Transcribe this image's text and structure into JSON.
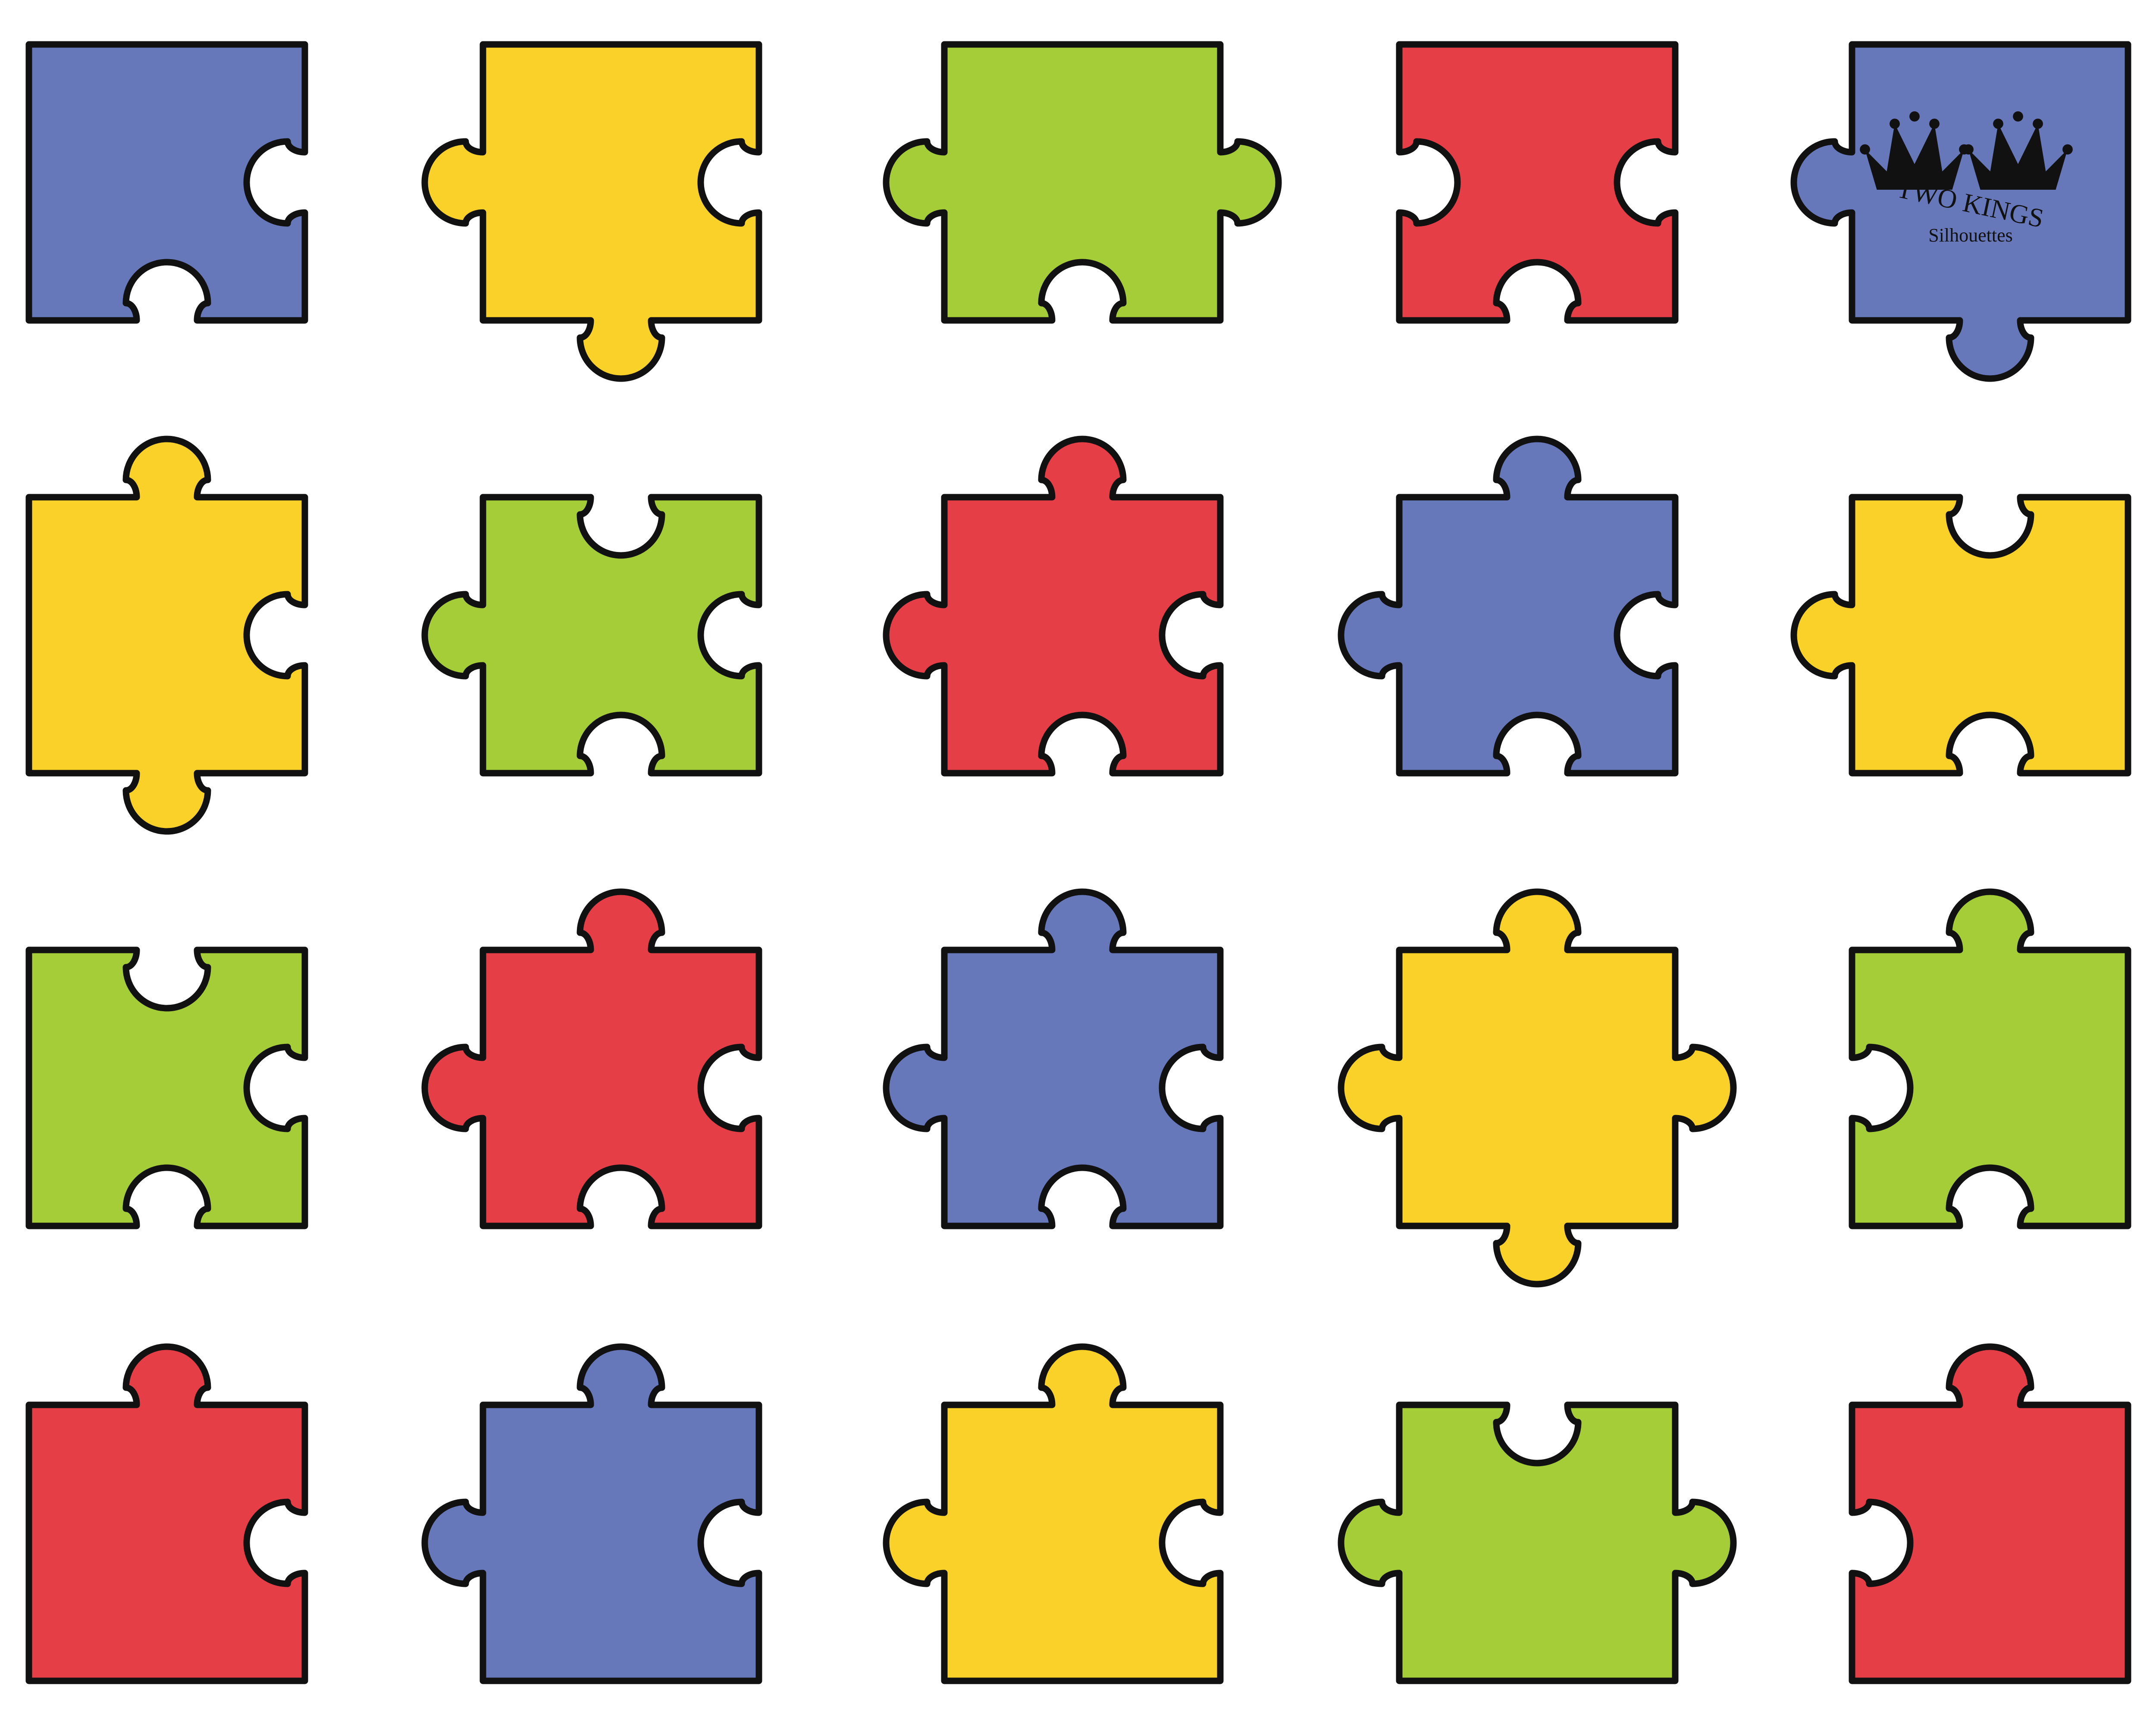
{
  "colors": {
    "blue": "#6678b9",
    "yellow": "#f9d128",
    "green": "#a5cd37",
    "red": "#e63e46",
    "outline": "#111111",
    "background": "#ffffff"
  },
  "watermark": {
    "title": "TWO KINGS",
    "subtitle": "Silhouettes",
    "icon": "crown-icon"
  },
  "pieces": [
    {
      "color": "blue",
      "top": "flat",
      "right": "in",
      "bottom": "in",
      "left": "flat"
    },
    {
      "color": "yellow",
      "top": "flat",
      "right": "in",
      "bottom": "out",
      "left": "out"
    },
    {
      "color": "green",
      "top": "flat",
      "right": "out",
      "bottom": "in",
      "left": "out"
    },
    {
      "color": "red",
      "top": "flat",
      "right": "in",
      "bottom": "in",
      "left": "in"
    },
    {
      "color": "blue",
      "top": "flat",
      "right": "flat",
      "bottom": "out",
      "left": "out"
    },
    {
      "color": "yellow",
      "top": "out",
      "right": "in",
      "bottom": "out",
      "left": "flat"
    },
    {
      "color": "green",
      "top": "in",
      "right": "in",
      "bottom": "in",
      "left": "out"
    },
    {
      "color": "red",
      "top": "out",
      "right": "in",
      "bottom": "in",
      "left": "out"
    },
    {
      "color": "blue",
      "top": "out",
      "right": "in",
      "bottom": "in",
      "left": "out"
    },
    {
      "color": "yellow",
      "top": "in",
      "right": "flat",
      "bottom": "in",
      "left": "out"
    },
    {
      "color": "green",
      "top": "in",
      "right": "in",
      "bottom": "in",
      "left": "flat"
    },
    {
      "color": "red",
      "top": "out",
      "right": "in",
      "bottom": "in",
      "left": "out"
    },
    {
      "color": "blue",
      "top": "out",
      "right": "in",
      "bottom": "in",
      "left": "out"
    },
    {
      "color": "yellow",
      "top": "out",
      "right": "out",
      "bottom": "out",
      "left": "out"
    },
    {
      "color": "green",
      "top": "out",
      "right": "flat",
      "bottom": "in",
      "left": "in"
    },
    {
      "color": "red",
      "top": "out",
      "right": "in",
      "bottom": "flat",
      "left": "flat"
    },
    {
      "color": "blue",
      "top": "out",
      "right": "in",
      "bottom": "flat",
      "left": "out"
    },
    {
      "color": "yellow",
      "top": "out",
      "right": "in",
      "bottom": "flat",
      "left": "out"
    },
    {
      "color": "green",
      "top": "in",
      "right": "out",
      "bottom": "flat",
      "left": "out"
    },
    {
      "color": "red",
      "top": "out",
      "right": "flat",
      "bottom": "flat",
      "left": "in"
    }
  ]
}
